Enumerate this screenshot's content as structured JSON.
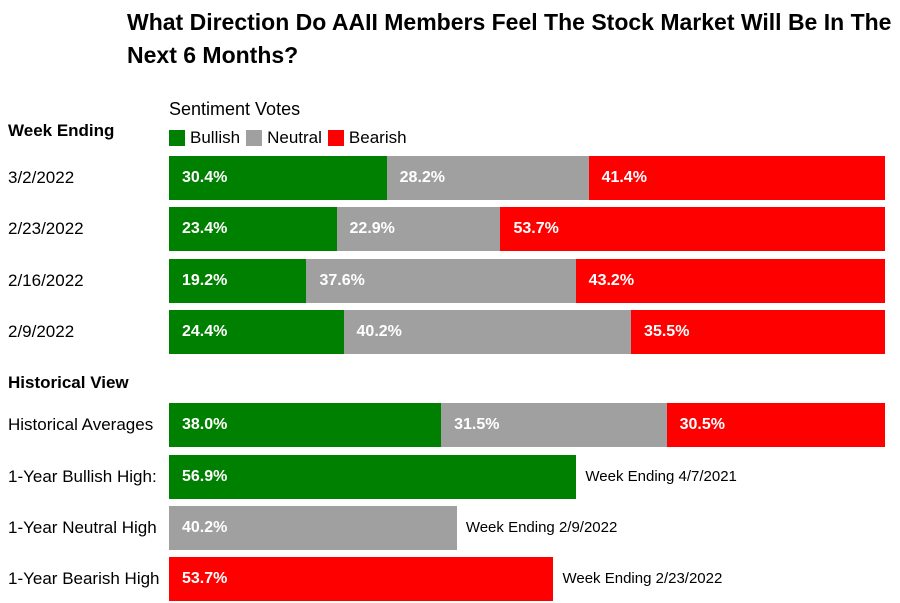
{
  "title": "What Direction Do AAII Members Feel The Stock Market Will Be In The Next 6 Months?",
  "legend_title": "Sentiment Votes",
  "week_ending_label": "Week Ending",
  "historical_label": "Historical View",
  "colors": {
    "bullish": "#008000",
    "neutral": "#a0a0a0",
    "bearish": "#ff0000"
  },
  "chart_data": {
    "type": "bar",
    "stacked": true,
    "orientation": "horizontal",
    "series": [
      {
        "name": "Bullish",
        "key": "bullish"
      },
      {
        "name": "Neutral",
        "key": "neutral"
      },
      {
        "name": "Bearish",
        "key": "bearish"
      }
    ],
    "weekly": [
      {
        "label": "3/2/2022",
        "bullish": 30.4,
        "neutral": 28.2,
        "bearish": 41.4
      },
      {
        "label": "2/23/2022",
        "bullish": 23.4,
        "neutral": 22.9,
        "bearish": 53.7
      },
      {
        "label": "2/16/2022",
        "bullish": 19.2,
        "neutral": 37.6,
        "bearish": 43.2
      },
      {
        "label": "2/9/2022",
        "bullish": 24.4,
        "neutral": 40.2,
        "bearish": 35.5
      }
    ],
    "historical": [
      {
        "label": "Historical Averages",
        "bullish": 38.0,
        "neutral": 31.5,
        "bearish": 30.5,
        "note": ""
      },
      {
        "label": "1-Year Bullish High:",
        "bullish": 56.9,
        "note": "Week Ending 4/7/2021"
      },
      {
        "label": "1-Year Neutral High",
        "neutral": 40.2,
        "note": "Week Ending 2/9/2022"
      },
      {
        "label": "1-Year Bearish High",
        "bearish": 53.7,
        "note": "Week Ending 2/23/2022"
      }
    ]
  }
}
